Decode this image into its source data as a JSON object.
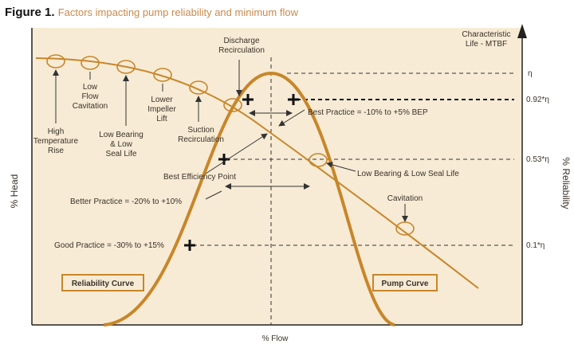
{
  "title": {
    "figure": "Figure 1.",
    "text": "Factors impacting pump reliability and minimum flow"
  },
  "axes": {
    "y_left": "% Head",
    "y_right": "% Reliability",
    "x": "% Flow",
    "right_top": [
      "Characteristic",
      "Life - MTBF"
    ]
  },
  "levels": [
    "η",
    "0.92*η",
    "0.53*η",
    "0.1*η"
  ],
  "annotations": [
    [
      "High",
      "Temperature",
      "Rise"
    ],
    [
      "Low",
      "Flow",
      "Cavitation"
    ],
    [
      "Low Bearing",
      "& Low",
      "Seal Life"
    ],
    [
      "Lower",
      "Impeller",
      "Lift"
    ],
    [
      "Suction",
      "Recirculation"
    ],
    [
      "Discharge",
      "Recirculation"
    ],
    [
      "Best Practice = -10% to +5% BEP"
    ],
    [
      "Low Bearing & Low Seal Life"
    ],
    [
      "Best Efficiency Point"
    ],
    [
      "Better Practice = -20% to +10%"
    ],
    [
      "Cavitation"
    ],
    [
      "Good Practice = -30% to +15%"
    ]
  ],
  "boxes": [
    "Reliability Curve",
    "Pump Curve"
  ]
}
